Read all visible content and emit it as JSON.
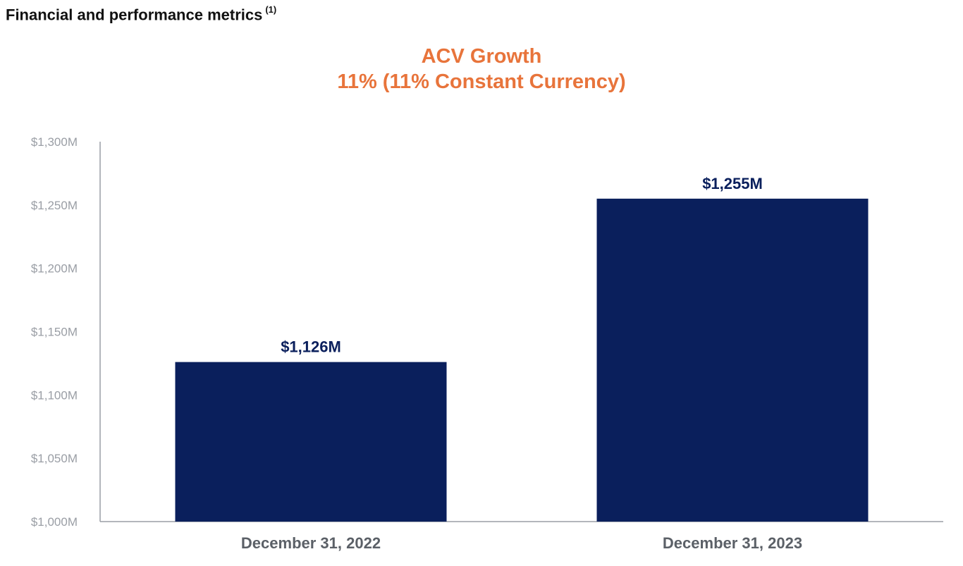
{
  "header": {
    "title": "Financial and performance metrics",
    "footnote_marker": "(1)"
  },
  "chart_data": {
    "type": "bar",
    "title": "ACV Growth",
    "subtitle": "11% (11% Constant Currency)",
    "categories": [
      "December 31, 2022",
      "December 31, 2023"
    ],
    "values": [
      1126,
      1255
    ],
    "data_labels": [
      "$1,126M",
      "$1,255M"
    ],
    "ylim": [
      1000,
      1300
    ],
    "yticks": [
      1000,
      1050,
      1100,
      1150,
      1200,
      1250,
      1300
    ],
    "ytick_labels": [
      "$1,000M",
      "$1,050M",
      "$1,100M",
      "$1,150M",
      "$1,200M",
      "$1,250M",
      "$1,300M"
    ],
    "xlabel": "",
    "ylabel": "",
    "grid": false,
    "colors": {
      "bar": "#0a1f5c",
      "title": "#e8743b",
      "axis": "#9a9ea5"
    }
  }
}
